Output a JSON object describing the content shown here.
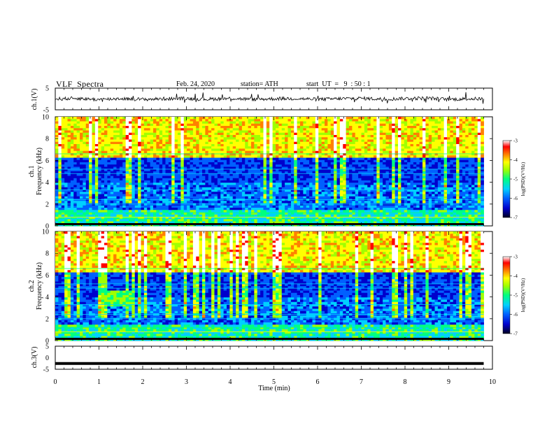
{
  "header": {
    "title": "VLF  Spectra",
    "date": "Feb. 24, 2020",
    "station": "station= ATH",
    "start": "start  UT  =   9  : 50 : 1"
  },
  "chart_data": [
    {
      "type": "line",
      "panel": "ch1-waveform",
      "ylabel": "ch.1(V)",
      "ylim": [
        -5,
        5
      ],
      "yticks": [
        "5",
        "-5"
      ],
      "x": [
        0,
        0.5,
        1,
        1.5,
        2,
        2.5,
        3,
        3.5,
        4,
        4.5,
        5,
        5.5,
        6,
        6.5,
        7,
        7.5,
        8,
        8.5,
        9,
        9.5,
        9.8
      ],
      "y": [
        0,
        0.3,
        -0.3,
        0.2,
        -0.2,
        0.1,
        0.2,
        -0.1,
        0.3,
        -0.2,
        0.1,
        0.2,
        -0.2,
        0.1,
        0.3,
        -0.1,
        0.2,
        0.4,
        -0.2,
        0.1,
        0
      ],
      "line_color": "#000000"
    },
    {
      "type": "heatmap",
      "panel": "ch1-spectrogram",
      "ylabel": "ch.1\nFrequency  (kHz)",
      "ylim": [
        0,
        10
      ],
      "yticks": [
        "0",
        "2",
        "4",
        "6",
        "8",
        "10"
      ],
      "xlim": [
        0,
        10
      ],
      "colorbar": {
        "label": "log(PSD)(V²/Hz)",
        "range": [
          -7,
          -3
        ],
        "ticks": [
          "-3",
          "-4",
          "-5",
          "-6",
          "-7"
        ],
        "colors": [
          "#000020",
          "#0000cc",
          "#0060ff",
          "#00d0ff",
          "#00ff80",
          "#a0ff00",
          "#ffff00",
          "#ff8000",
          "#ff0000",
          "#ffffff"
        ]
      }
    },
    {
      "type": "heatmap",
      "panel": "ch2-spectrogram",
      "ylabel": "ch.2\nFrequency  (kHz)",
      "ylim": [
        0,
        10
      ],
      "yticks": [
        "0",
        "2",
        "4",
        "6",
        "8",
        "10"
      ],
      "xlim": [
        0,
        10
      ],
      "colorbar": {
        "label": "log(PSD)(V²/Hz)",
        "range": [
          -7,
          -3
        ],
        "ticks": [
          "-3",
          "-4",
          "-5",
          "-6",
          "-7"
        ]
      }
    },
    {
      "type": "line",
      "panel": "ch3-waveform",
      "ylabel": "ch.3(V)",
      "ylim": [
        -5,
        5
      ],
      "yticks": [
        "5",
        "0",
        "-5"
      ],
      "x": [
        0,
        9.8
      ],
      "y": [
        -2.5,
        -2.5
      ],
      "line_color": "#000000"
    }
  ],
  "xaxis": {
    "label": "Time  (min)",
    "ticks": [
      "0",
      "1",
      "2",
      "3",
      "4",
      "5",
      "6",
      "7",
      "8",
      "9",
      "10"
    ]
  }
}
